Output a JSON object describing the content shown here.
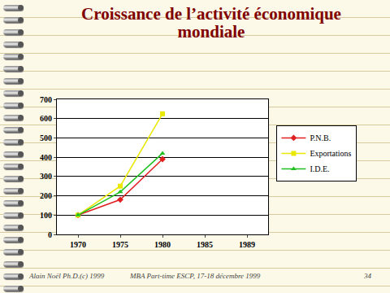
{
  "chart_data": {
    "type": "line",
    "title": "Croissance de l’activité économique\nmondiale",
    "categories": [
      "1970",
      "1975",
      "1980",
      "1985",
      "1989"
    ],
    "series": [
      {
        "name": "P.N.B.",
        "color": "#e02020",
        "marker": "diamond",
        "values": [
          100,
          180,
          390,
          null,
          null
        ]
      },
      {
        "name": "Exportations",
        "color": "#e8e800",
        "marker": "square",
        "values": [
          100,
          250,
          625,
          null,
          null
        ]
      },
      {
        "name": "I.D.E.",
        "color": "#20c020",
        "marker": "triangle-up",
        "values": [
          100,
          220,
          420,
          null,
          null
        ]
      }
    ],
    "ylim": [
      0,
      700
    ],
    "yticks": [
      0,
      100,
      200,
      300,
      400,
      500,
      600,
      700
    ],
    "grid": true,
    "legend": "right"
  },
  "slide": {
    "footer_left": "Alain Noël Ph.D.(c) 1999",
    "footer_center": "MBA Part-time ESCP, 17-18 décembre 1999",
    "page": "34"
  }
}
